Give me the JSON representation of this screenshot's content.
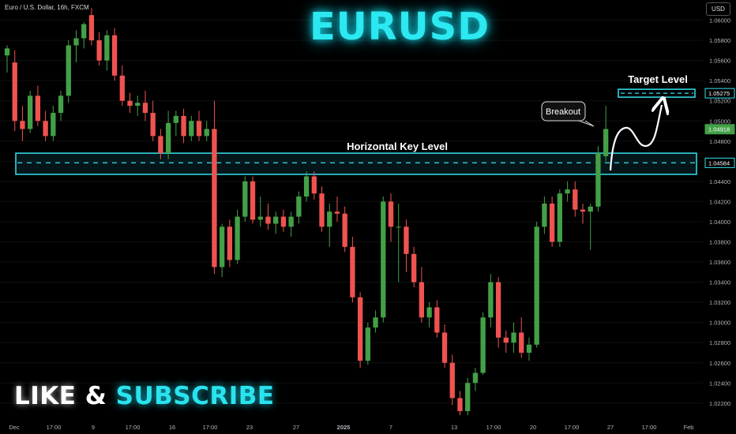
{
  "symbol_line": "Euro / U.S. Dollar, 16h, FXCM",
  "title": "EURUSD",
  "cta": {
    "word1": "LIKE",
    "amp": "&",
    "word2": "SUBSCRIBE"
  },
  "currency_button": "USD",
  "colors": {
    "up": "#26a69a",
    "up_fill": "#43a047",
    "down": "#ef5350",
    "accent": "#2ce8f0",
    "axis_text": "#b2b5be",
    "bg": "#000000"
  },
  "chart_data": {
    "type": "candlestick",
    "title": "EURUSD",
    "ylim": [
      1.0205,
      1.062
    ],
    "y_ticks": [
      "1.06000",
      "1.05800",
      "1.05600",
      "1.05400",
      "1.05200",
      "1.05000",
      "1.04800",
      "1.04600",
      "1.04400",
      "1.04200",
      "1.04000",
      "1.03800",
      "1.03600",
      "1.03400",
      "1.03200",
      "1.03000",
      "1.02800",
      "1.02600",
      "1.02400",
      "1.02200"
    ],
    "x_ticks": [
      "Dec",
      "17:00",
      "9",
      "17:00",
      "16",
      "17:00",
      "23",
      "27",
      "2025",
      "7",
      "13",
      "17:00",
      "20",
      "17:00",
      "27",
      "17:00",
      "Feb"
    ],
    "price_tags": [
      {
        "label": "1.05275",
        "value": 1.05275,
        "style": "target"
      },
      {
        "label": "1.04918",
        "value": 1.04918,
        "style": "last"
      },
      {
        "label": "1.04584",
        "value": 1.04584,
        "style": "level"
      }
    ],
    "annotations": {
      "key_level_label": "Horizontal Key Level",
      "key_level_zone": [
        1.0447,
        1.0468
      ],
      "key_level_mid": 1.04584,
      "target_label": "Target Level",
      "target_value": 1.05275,
      "breakout_label": "Breakout"
    },
    "candles": [
      {
        "o": 1.0565,
        "h": 1.0575,
        "l": 1.0548,
        "c": 1.0572
      },
      {
        "o": 1.0558,
        "h": 1.057,
        "l": 1.049,
        "c": 1.05
      },
      {
        "o": 1.05,
        "h": 1.0515,
        "l": 1.048,
        "c": 1.0492
      },
      {
        "o": 1.0492,
        "h": 1.053,
        "l": 1.0488,
        "c": 1.0525
      },
      {
        "o": 1.0525,
        "h": 1.0535,
        "l": 1.0495,
        "c": 1.05
      },
      {
        "o": 1.05,
        "h": 1.051,
        "l": 1.048,
        "c": 1.0485
      },
      {
        "o": 1.0485,
        "h": 1.0515,
        "l": 1.048,
        "c": 1.0508
      },
      {
        "o": 1.0508,
        "h": 1.053,
        "l": 1.05,
        "c": 1.0525
      },
      {
        "o": 1.0525,
        "h": 1.058,
        "l": 1.0518,
        "c": 1.0575
      },
      {
        "o": 1.0575,
        "h": 1.059,
        "l": 1.0558,
        "c": 1.0582
      },
      {
        "o": 1.0582,
        "h": 1.0598,
        "l": 1.0572,
        "c": 1.0596
      },
      {
        "o": 1.0605,
        "h": 1.0612,
        "l": 1.0575,
        "c": 1.058
      },
      {
        "o": 1.058,
        "h": 1.0588,
        "l": 1.0555,
        "c": 1.056
      },
      {
        "o": 1.056,
        "h": 1.059,
        "l": 1.055,
        "c": 1.0585
      },
      {
        "o": 1.0585,
        "h": 1.0592,
        "l": 1.054,
        "c": 1.0545
      },
      {
        "o": 1.0545,
        "h": 1.0555,
        "l": 1.0515,
        "c": 1.052
      },
      {
        "o": 1.052,
        "h": 1.0528,
        "l": 1.0508,
        "c": 1.0515
      },
      {
        "o": 1.0515,
        "h": 1.0525,
        "l": 1.0505,
        "c": 1.0518
      },
      {
        "o": 1.0518,
        "h": 1.053,
        "l": 1.05,
        "c": 1.0508
      },
      {
        "o": 1.0508,
        "h": 1.052,
        "l": 1.048,
        "c": 1.0485
      },
      {
        "o": 1.0485,
        "h": 1.0492,
        "l": 1.0462,
        "c": 1.0468
      },
      {
        "o": 1.0468,
        "h": 1.051,
        "l": 1.0462,
        "c": 1.0498
      },
      {
        "o": 1.0498,
        "h": 1.051,
        "l": 1.0485,
        "c": 1.0505
      },
      {
        "o": 1.0505,
        "h": 1.0512,
        "l": 1.0478,
        "c": 1.0485
      },
      {
        "o": 1.0485,
        "h": 1.0505,
        "l": 1.048,
        "c": 1.05
      },
      {
        "o": 1.05,
        "h": 1.051,
        "l": 1.048,
        "c": 1.0485
      },
      {
        "o": 1.0485,
        "h": 1.05,
        "l": 1.048,
        "c": 1.0492
      },
      {
        "o": 1.0492,
        "h": 1.052,
        "l": 1.0348,
        "c": 1.0355
      },
      {
        "o": 1.0355,
        "h": 1.0398,
        "l": 1.0345,
        "c": 1.0395
      },
      {
        "o": 1.0395,
        "h": 1.0402,
        "l": 1.0355,
        "c": 1.0362
      },
      {
        "o": 1.0362,
        "h": 1.0412,
        "l": 1.0358,
        "c": 1.0405
      },
      {
        "o": 1.0405,
        "h": 1.0445,
        "l": 1.04,
        "c": 1.044
      },
      {
        "o": 1.044,
        "h": 1.0445,
        "l": 1.0398,
        "c": 1.0402
      },
      {
        "o": 1.0402,
        "h": 1.0425,
        "l": 1.0395,
        "c": 1.0405
      },
      {
        "o": 1.0405,
        "h": 1.0418,
        "l": 1.0392,
        "c": 1.0398
      },
      {
        "o": 1.0398,
        "h": 1.041,
        "l": 1.0388,
        "c": 1.0405
      },
      {
        "o": 1.0405,
        "h": 1.0412,
        "l": 1.039,
        "c": 1.0395
      },
      {
        "o": 1.0395,
        "h": 1.041,
        "l": 1.0385,
        "c": 1.0405
      },
      {
        "o": 1.0405,
        "h": 1.043,
        "l": 1.0398,
        "c": 1.0425
      },
      {
        "o": 1.0425,
        "h": 1.045,
        "l": 1.042,
        "c": 1.0445
      },
      {
        "o": 1.0445,
        "h": 1.045,
        "l": 1.0422,
        "c": 1.0428
      },
      {
        "o": 1.0428,
        "h": 1.0435,
        "l": 1.039,
        "c": 1.0395
      },
      {
        "o": 1.0395,
        "h": 1.0418,
        "l": 1.0375,
        "c": 1.041
      },
      {
        "o": 1.041,
        "h": 1.0425,
        "l": 1.04,
        "c": 1.0408
      },
      {
        "o": 1.0408,
        "h": 1.0415,
        "l": 1.037,
        "c": 1.0375
      },
      {
        "o": 1.0375,
        "h": 1.0385,
        "l": 1.032,
        "c": 1.0325
      },
      {
        "o": 1.0325,
        "h": 1.033,
        "l": 1.0255,
        "c": 1.0262
      },
      {
        "o": 1.0262,
        "h": 1.03,
        "l": 1.0258,
        "c": 1.0295
      },
      {
        "o": 1.0295,
        "h": 1.0312,
        "l": 1.029,
        "c": 1.0305
      },
      {
        "o": 1.0305,
        "h": 1.0425,
        "l": 1.03,
        "c": 1.042
      },
      {
        "o": 1.042,
        "h": 1.0428,
        "l": 1.038,
        "c": 1.0395
      },
      {
        "o": 1.0395,
        "h": 1.0418,
        "l": 1.034,
        "c": 1.0395
      },
      {
        "o": 1.0395,
        "h": 1.0402,
        "l": 1.035,
        "c": 1.0368
      },
      {
        "o": 1.0368,
        "h": 1.0375,
        "l": 1.0335,
        "c": 1.034
      },
      {
        "o": 1.034,
        "h": 1.0355,
        "l": 1.03,
        "c": 1.0305
      },
      {
        "o": 1.0305,
        "h": 1.032,
        "l": 1.0295,
        "c": 1.0315
      },
      {
        "o": 1.0315,
        "h": 1.0322,
        "l": 1.0285,
        "c": 1.029
      },
      {
        "o": 1.029,
        "h": 1.0298,
        "l": 1.0255,
        "c": 1.026
      },
      {
        "o": 1.026,
        "h": 1.0268,
        "l": 1.0218,
        "c": 1.0225
      },
      {
        "o": 1.0225,
        "h": 1.0232,
        "l": 1.0208,
        "c": 1.0212
      },
      {
        "o": 1.0212,
        "h": 1.0245,
        "l": 1.0208,
        "c": 1.024
      },
      {
        "o": 1.024,
        "h": 1.0255,
        "l": 1.0232,
        "c": 1.025
      },
      {
        "o": 1.025,
        "h": 1.031,
        "l": 1.0248,
        "c": 1.0305
      },
      {
        "o": 1.0305,
        "h": 1.0348,
        "l": 1.0295,
        "c": 1.034
      },
      {
        "o": 1.034,
        "h": 1.0345,
        "l": 1.0275,
        "c": 1.0285
      },
      {
        "o": 1.0285,
        "h": 1.0292,
        "l": 1.027,
        "c": 1.028
      },
      {
        "o": 1.028,
        "h": 1.03,
        "l": 1.027,
        "c": 1.029
      },
      {
        "o": 1.029,
        "h": 1.0305,
        "l": 1.0265,
        "c": 1.027
      },
      {
        "o": 1.027,
        "h": 1.0285,
        "l": 1.0262,
        "c": 1.0278
      },
      {
        "o": 1.0278,
        "h": 1.04,
        "l": 1.0275,
        "c": 1.0395
      },
      {
        "o": 1.0395,
        "h": 1.0425,
        "l": 1.0388,
        "c": 1.0418
      },
      {
        "o": 1.0418,
        "h": 1.0425,
        "l": 1.0375,
        "c": 1.038
      },
      {
        "o": 1.038,
        "h": 1.0432,
        "l": 1.0375,
        "c": 1.0428
      },
      {
        "o": 1.0428,
        "h": 1.044,
        "l": 1.042,
        "c": 1.0432
      },
      {
        "o": 1.0432,
        "h": 1.044,
        "l": 1.0405,
        "c": 1.0412
      },
      {
        "o": 1.0412,
        "h": 1.0418,
        "l": 1.0398,
        "c": 1.041
      },
      {
        "o": 1.041,
        "h": 1.0418,
        "l": 1.0372,
        "c": 1.0415
      },
      {
        "o": 1.0415,
        "h": 1.0475,
        "l": 1.041,
        "c": 1.0468
      },
      {
        "o": 1.0465,
        "h": 1.0515,
        "l": 1.046,
        "c": 1.0492
      }
    ]
  }
}
